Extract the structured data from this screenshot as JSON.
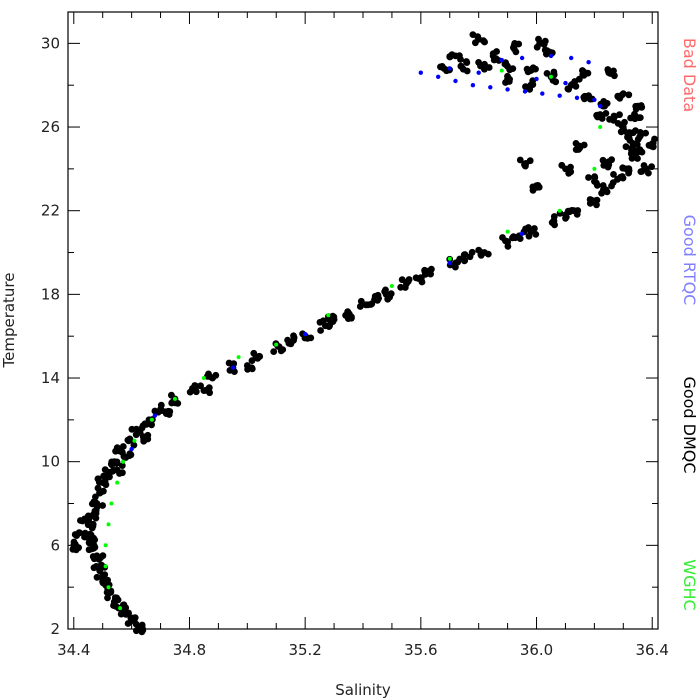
{
  "chart_data": {
    "type": "scatter",
    "xlabel": "Salinity",
    "ylabel": "Temperature",
    "xlim": [
      34.38,
      36.42
    ],
    "ylim": [
      2,
      31.5
    ],
    "xticks": [
      {
        "v": 34.4,
        "label": "34.4"
      },
      {
        "v": 34.8,
        "label": "34.8"
      },
      {
        "v": 35.2,
        "label": "35.2"
      },
      {
        "v": 35.6,
        "label": "35.6"
      },
      {
        "v": 36.0,
        "label": "36.0"
      },
      {
        "v": 36.4,
        "label": "36.4"
      }
    ],
    "xminor": [
      34.5,
      34.6,
      34.7,
      34.9,
      35.0,
      35.1,
      35.3,
      35.4,
      35.5,
      35.7,
      35.8,
      35.9,
      36.1,
      36.2,
      36.3
    ],
    "yticks": [
      {
        "v": 2,
        "label": "2"
      },
      {
        "v": 6,
        "label": "6"
      },
      {
        "v": 10,
        "label": "10"
      },
      {
        "v": 14,
        "label": "14"
      },
      {
        "v": 18,
        "label": "18"
      },
      {
        "v": 22,
        "label": "22"
      },
      {
        "v": 26,
        "label": "26"
      },
      {
        "v": 30,
        "label": "30"
      }
    ],
    "yminor": [
      4,
      8,
      12,
      16,
      20,
      24,
      28
    ],
    "grid": false,
    "legend": [
      {
        "label": "Bad Data",
        "color": "#ff6b6b"
      },
      {
        "label": "Good RTQC",
        "color": "#8080ff"
      },
      {
        "label": "Good DMQC",
        "color": "#000000"
      },
      {
        "label": "WGHC",
        "color": "#33ee33"
      }
    ],
    "series": [
      {
        "name": "Good DMQC",
        "color": "#000000",
        "points": [
          [
            34.63,
            2.1
          ],
          [
            34.6,
            2.4
          ],
          [
            34.58,
            2.7
          ],
          [
            34.56,
            3.0
          ],
          [
            34.54,
            3.3
          ],
          [
            34.52,
            3.7
          ],
          [
            34.51,
            4.1
          ],
          [
            34.5,
            4.5
          ],
          [
            34.49,
            5.0
          ],
          [
            34.48,
            5.5
          ],
          [
            34.47,
            6.0
          ],
          [
            34.46,
            6.5
          ],
          [
            34.46,
            7.0
          ],
          [
            34.47,
            7.5
          ],
          [
            34.48,
            8.0
          ],
          [
            34.49,
            8.5
          ],
          [
            34.5,
            9.0
          ],
          [
            34.52,
            9.5
          ],
          [
            34.54,
            10.0
          ],
          [
            34.56,
            10.5
          ],
          [
            34.59,
            11.0
          ],
          [
            34.62,
            11.5
          ],
          [
            34.66,
            12.0
          ],
          [
            34.7,
            12.5
          ],
          [
            34.75,
            13.0
          ],
          [
            34.81,
            13.5
          ],
          [
            34.88,
            14.0
          ],
          [
            34.95,
            14.5
          ],
          [
            35.03,
            15.0
          ],
          [
            35.11,
            15.5
          ],
          [
            35.2,
            16.0
          ],
          [
            35.27,
            16.5
          ],
          [
            35.34,
            17.0
          ],
          [
            35.41,
            17.5
          ],
          [
            35.48,
            18.0
          ],
          [
            35.55,
            18.5
          ],
          [
            35.63,
            19.0
          ],
          [
            35.72,
            19.5
          ],
          [
            35.82,
            20.0
          ],
          [
            35.9,
            20.5
          ],
          [
            35.98,
            21.0
          ],
          [
            36.06,
            21.5
          ],
          [
            36.13,
            22.0
          ],
          [
            36.19,
            22.5
          ],
          [
            36.24,
            23.0
          ],
          [
            36.28,
            23.5
          ],
          [
            36.31,
            24.0
          ],
          [
            36.33,
            24.5
          ],
          [
            36.33,
            25.0
          ],
          [
            36.32,
            25.5
          ],
          [
            36.3,
            26.0
          ],
          [
            36.27,
            26.5
          ],
          [
            36.23,
            27.0
          ],
          [
            36.18,
            27.5
          ],
          [
            36.12,
            28.0
          ],
          [
            36.05,
            28.4
          ],
          [
            35.98,
            28.7
          ],
          [
            35.9,
            28.9
          ],
          [
            35.82,
            29.0
          ],
          [
            35.74,
            28.9
          ],
          [
            35.68,
            28.8
          ],
          [
            34.4,
            6.0
          ],
          [
            34.42,
            6.6
          ],
          [
            34.44,
            7.2
          ],
          [
            34.55,
            9.6
          ],
          [
            34.58,
            10.2
          ],
          [
            34.64,
            11.2
          ],
          [
            34.72,
            12.3
          ],
          [
            34.85,
            13.4
          ],
          [
            35.0,
            14.6
          ],
          [
            35.16,
            15.8
          ],
          [
            35.3,
            16.8
          ],
          [
            35.45,
            17.8
          ],
          [
            35.6,
            18.8
          ],
          [
            35.77,
            19.8
          ],
          [
            35.94,
            20.8
          ],
          [
            36.1,
            21.8
          ],
          [
            36.2,
            23.4
          ],
          [
            36.25,
            24.2
          ],
          [
            36.35,
            24.8
          ],
          [
            36.36,
            25.6
          ],
          [
            36.34,
            26.4
          ],
          [
            36.22,
            26.6
          ],
          [
            36.15,
            25.0
          ],
          [
            36.1,
            24.0
          ],
          [
            36.4,
            25.2
          ],
          [
            36.38,
            24.0
          ],
          [
            36.05,
            29.5
          ],
          [
            36.02,
            30.0
          ],
          [
            35.8,
            30.2
          ],
          [
            35.85,
            29.4
          ],
          [
            35.92,
            29.8
          ],
          [
            36.25,
            28.6
          ],
          [
            36.3,
            27.6
          ],
          [
            35.96,
            24.2
          ],
          [
            36.0,
            23.2
          ],
          [
            35.98,
            28.0
          ],
          [
            35.72,
            29.4
          ],
          [
            35.9,
            28.3
          ],
          [
            36.16,
            28.5
          ],
          [
            36.35,
            27.0
          ]
        ]
      },
      {
        "name": "Good RTQC",
        "color": "#0000ff",
        "points": [
          [
            35.6,
            28.6
          ],
          [
            35.66,
            28.4
          ],
          [
            35.72,
            28.2
          ],
          [
            35.78,
            28.0
          ],
          [
            35.84,
            27.9
          ],
          [
            35.9,
            27.8
          ],
          [
            35.96,
            27.7
          ],
          [
            36.02,
            27.6
          ],
          [
            36.08,
            27.5
          ],
          [
            36.14,
            27.4
          ],
          [
            36.2,
            27.3
          ],
          [
            36.22,
            27.0
          ],
          [
            35.88,
            29.2
          ],
          [
            35.95,
            29.3
          ],
          [
            36.05,
            29.4
          ],
          [
            36.12,
            29.3
          ],
          [
            36.18,
            29.1
          ],
          [
            35.7,
            28.8
          ],
          [
            35.8,
            28.6
          ],
          [
            36.0,
            28.3
          ],
          [
            36.1,
            28.1
          ],
          [
            34.6,
            10.6
          ],
          [
            34.68,
            12.2
          ],
          [
            34.95,
            14.5
          ],
          [
            35.2,
            16.1
          ],
          [
            35.95,
            20.9
          ],
          [
            35.7,
            19.5
          ]
        ]
      },
      {
        "name": "WGHC",
        "color": "#00ff00",
        "points": [
          [
            34.56,
            3.0
          ],
          [
            34.52,
            4.0
          ],
          [
            34.51,
            5.0
          ],
          [
            34.51,
            6.0
          ],
          [
            34.52,
            7.0
          ],
          [
            34.53,
            8.0
          ],
          [
            34.55,
            9.0
          ],
          [
            34.57,
            10.0
          ],
          [
            34.61,
            11.0
          ],
          [
            34.67,
            12.0
          ],
          [
            34.75,
            13.0
          ],
          [
            34.85,
            14.0
          ],
          [
            34.97,
            15.0
          ],
          [
            35.1,
            15.6
          ],
          [
            35.28,
            17.0
          ],
          [
            35.5,
            18.4
          ],
          [
            35.7,
            19.7
          ],
          [
            35.9,
            21.0
          ],
          [
            36.08,
            22.0
          ],
          [
            36.22,
            26.0
          ],
          [
            36.05,
            28.4
          ],
          [
            35.88,
            28.7
          ],
          [
            36.2,
            24.0
          ]
        ]
      }
    ]
  }
}
